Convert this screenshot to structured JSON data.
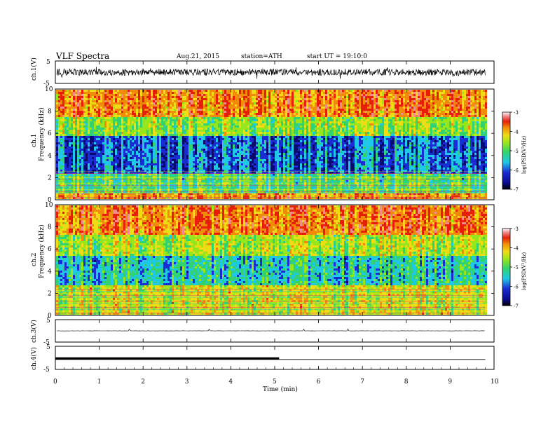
{
  "header": {
    "title": "VLF Spectra",
    "date": "Aug.21, 2015",
    "station": "station=ATH",
    "start": "start UT =  19:10:0"
  },
  "colors": {
    "background": "#ffffff",
    "axes": "#000000",
    "colormap": [
      "#0a0a6e",
      "#1a2dd2",
      "#1ec8e6",
      "#32d270",
      "#96e61e",
      "#f0dc14",
      "#f08c0a",
      "#e61e0a",
      "#f08c8c",
      "#ffffff"
    ]
  },
  "chart_data": [
    {
      "type": "line",
      "name": "ch1-waveform",
      "ylabel": "ch.1(V)",
      "ylim": [
        -5,
        5
      ],
      "yticks": [
        "5",
        "-5"
      ],
      "x_range": [
        0,
        9.8
      ],
      "amplitude_approx": 1.5,
      "baseline": 0
    },
    {
      "type": "heatmap",
      "name": "ch1-spectrogram",
      "ylabel_channel": "ch.1",
      "ylabel": "Frequency  (kHz)",
      "ylim": [
        0,
        10
      ],
      "yticks": [
        "0",
        "2",
        "4",
        "6",
        "8",
        "10"
      ],
      "x_range": [
        0,
        9.8
      ],
      "colorbar": {
        "label": "log(PSD(V²/Hz)",
        "range": [
          -7,
          -3
        ],
        "ticks": [
          "-3",
          "-4",
          "-5",
          "-6",
          "-7"
        ]
      },
      "bands_kHz": [
        {
          "from": 0,
          "to": 0.8,
          "level": -4.0
        },
        {
          "from": 0.8,
          "to": 2.4,
          "level": -5.3
        },
        {
          "from": 2.4,
          "to": 5.8,
          "level": -6.3
        },
        {
          "from": 5.8,
          "to": 7.5,
          "level": -5.0
        },
        {
          "from": 7.5,
          "to": 10,
          "level": -3.9
        }
      ]
    },
    {
      "type": "heatmap",
      "name": "ch2-spectrogram",
      "ylabel_channel": "ch.2",
      "ylabel": "Frequency  (kHz)",
      "ylim": [
        0,
        10
      ],
      "yticks": [
        "0",
        "2",
        "4",
        "6",
        "8",
        "10"
      ],
      "x_range": [
        0,
        9.8
      ],
      "colorbar": {
        "label": "log(PSD(V²/Hz)",
        "range": [
          -7,
          -3
        ],
        "ticks": [
          "-3",
          "-4",
          "-5",
          "-6",
          "-7"
        ]
      },
      "bands_kHz": [
        {
          "from": 0,
          "to": 2.8,
          "level": -4.7
        },
        {
          "from": 2.8,
          "to": 5.4,
          "level": -5.8
        },
        {
          "from": 5.4,
          "to": 7.4,
          "level": -4.9
        },
        {
          "from": 7.4,
          "to": 10,
          "level": -3.9
        }
      ]
    },
    {
      "type": "line",
      "name": "ch3-waveform",
      "ylabel": "ch.3(V)",
      "ylim": [
        -5,
        5
      ],
      "yticks": [
        "5",
        "-5"
      ],
      "x_range": [
        0,
        9.8
      ],
      "baseline": 0,
      "amplitude_approx": 0.1
    },
    {
      "type": "line",
      "name": "ch4-waveform",
      "ylabel": "ch.4(V)",
      "ylim": [
        -5,
        5
      ],
      "yticks": [
        "5",
        "-5"
      ],
      "x": [
        0,
        5.1,
        5.1,
        9.8
      ],
      "y": [
        -0.3,
        -0.3,
        -0.7,
        -0.7
      ],
      "note_thick_until": 5.1
    }
  ],
  "xaxis": {
    "label": "Time  (min)",
    "xlim": [
      0,
      10
    ],
    "ticks": [
      "0",
      "1",
      "2",
      "3",
      "4",
      "5",
      "6",
      "7",
      "8",
      "9",
      "10"
    ]
  }
}
